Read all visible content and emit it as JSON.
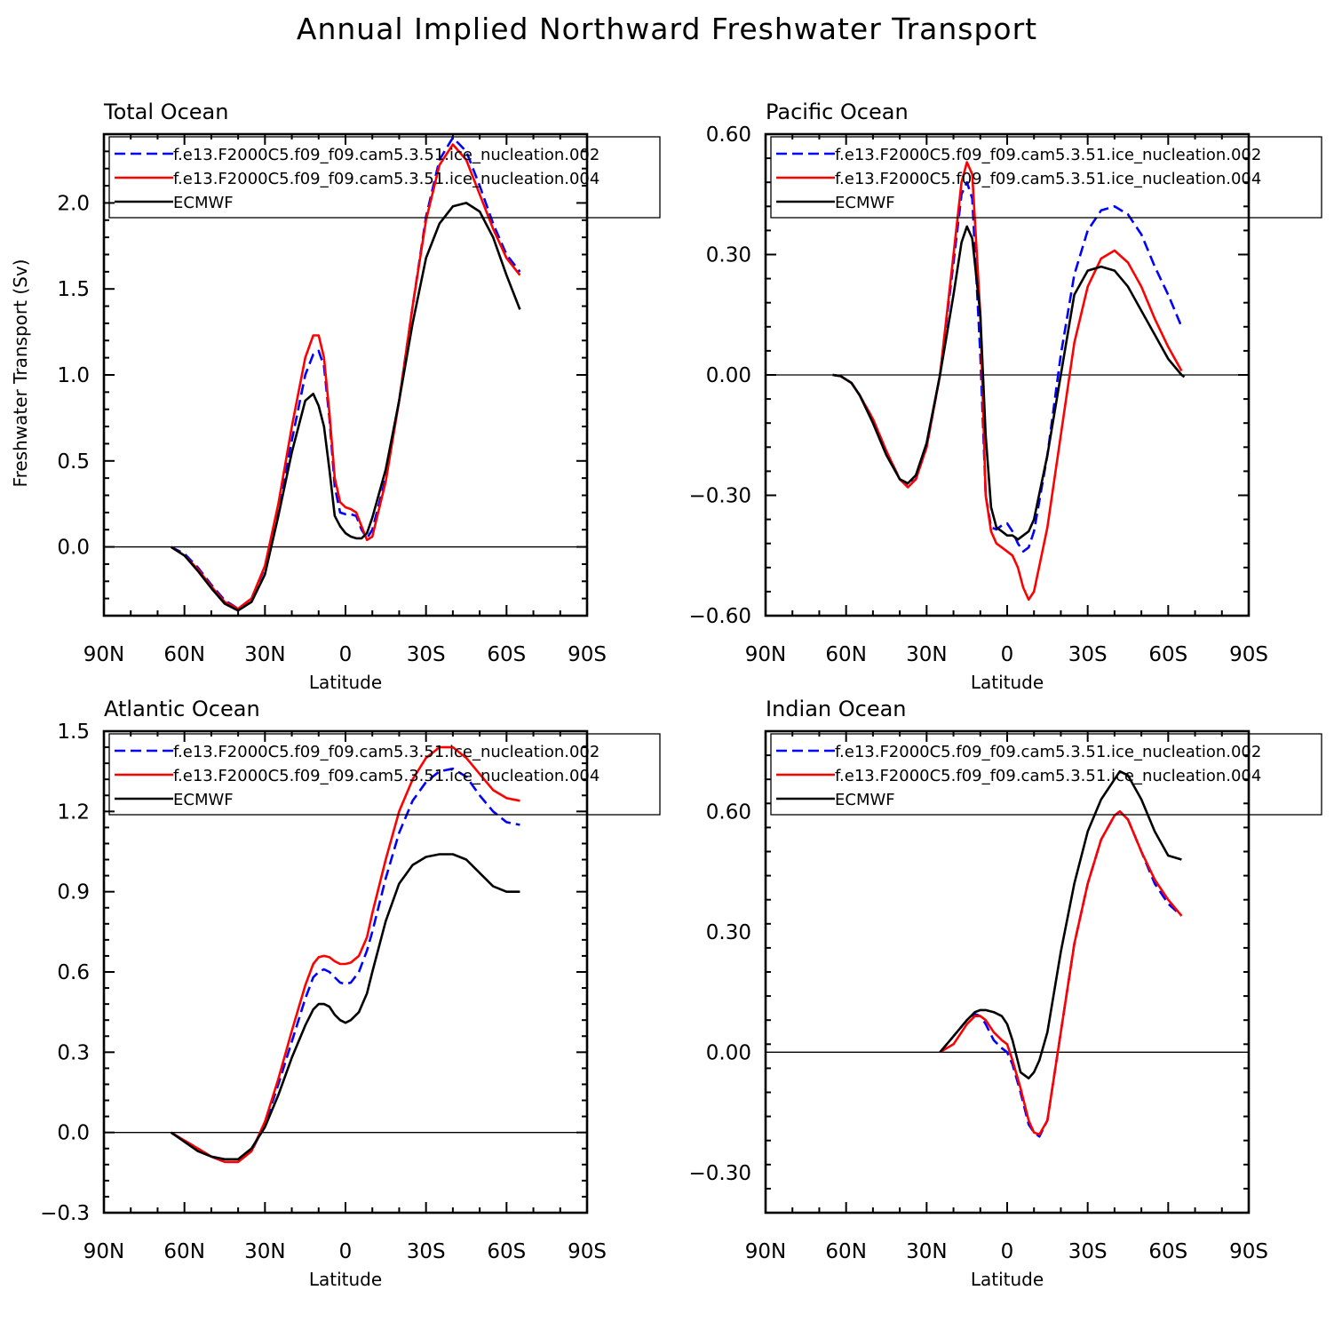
{
  "figure": {
    "title": "Annual Implied Northward Freshwater Transport",
    "ylabel": "Freshwater Transport (Sv)"
  },
  "legend": [
    {
      "name": "f.e13.F2000C5.f09_f09.cam5.3.51.ice_nucleation.002",
      "color": "#0000ff",
      "dash": true
    },
    {
      "name": "f.e13.F2000C5.f09_f09.cam5.3.51.ice_nucleation.004",
      "color": "#ff0000",
      "dash": false
    },
    {
      "name": "ECMWF",
      "color": "#000000",
      "dash": false
    }
  ],
  "chart_data": [
    {
      "type": "line",
      "title": "Total Ocean",
      "xlabel": "Latitude",
      "ylabel": "Freshwater Transport (Sv)",
      "xlim": [
        90,
        -90
      ],
      "ylim": [
        -0.4,
        2.4
      ],
      "xticks": [
        90,
        60,
        30,
        0,
        -30,
        -60,
        -90
      ],
      "xticklabels": [
        "90N",
        "60N",
        "30N",
        "0",
        "30S",
        "60S",
        "90S"
      ],
      "yticks": [
        0.0,
        0.5,
        1.0,
        1.5,
        2.0
      ],
      "yticklabels": [
        "0.0",
        "0.5",
        "1.0",
        "1.5",
        "2.0"
      ],
      "legend_position": "top",
      "series": [
        {
          "name": "f.e13.F2000C5.f09_f09.cam5.3.51.ice_nucleation.002",
          "x": [
            65,
            60,
            55,
            50,
            45,
            40,
            35,
            30,
            25,
            20,
            15,
            12,
            10,
            8,
            6,
            4,
            2,
            0,
            -2,
            -4,
            -6,
            -8,
            -10,
            -15,
            -20,
            -25,
            -30,
            -35,
            -40,
            -45,
            -50,
            -55,
            -60,
            -65
          ],
          "y": [
            0.0,
            -0.04,
            -0.12,
            -0.22,
            -0.31,
            -0.36,
            -0.3,
            -0.12,
            0.22,
            0.62,
            1.0,
            1.12,
            1.14,
            1.05,
            0.75,
            0.35,
            0.2,
            0.19,
            0.19,
            0.18,
            0.1,
            0.05,
            0.1,
            0.4,
            0.85,
            1.4,
            1.92,
            2.25,
            2.38,
            2.3,
            2.1,
            1.88,
            1.7,
            1.6
          ]
        },
        {
          "name": "f.e13.F2000C5.f09_f09.cam5.3.51.ice_nucleation.004",
          "x": [
            65,
            60,
            55,
            50,
            45,
            40,
            35,
            30,
            25,
            20,
            15,
            12,
            10,
            8,
            6,
            4,
            2,
            0,
            -2,
            -4,
            -6,
            -8,
            -10,
            -15,
            -20,
            -25,
            -30,
            -35,
            -40,
            -45,
            -50,
            -55,
            -60,
            -65
          ],
          "y": [
            0.0,
            -0.05,
            -0.13,
            -0.23,
            -0.32,
            -0.36,
            -0.3,
            -0.11,
            0.25,
            0.7,
            1.1,
            1.23,
            1.23,
            1.1,
            0.78,
            0.4,
            0.26,
            0.23,
            0.22,
            0.2,
            0.12,
            0.04,
            0.06,
            0.38,
            0.85,
            1.4,
            1.9,
            2.22,
            2.34,
            2.25,
            2.05,
            1.85,
            1.68,
            1.58
          ]
        },
        {
          "name": "ECMWF",
          "x": [
            65,
            60,
            55,
            50,
            45,
            40,
            35,
            30,
            25,
            20,
            15,
            12,
            10,
            8,
            6,
            4,
            2,
            0,
            -2,
            -4,
            -6,
            -8,
            -10,
            -15,
            -20,
            -25,
            -30,
            -35,
            -40,
            -45,
            -50,
            -55,
            -60,
            -65
          ],
          "y": [
            0.0,
            -0.05,
            -0.14,
            -0.24,
            -0.33,
            -0.37,
            -0.32,
            -0.16,
            0.18,
            0.55,
            0.85,
            0.89,
            0.82,
            0.7,
            0.45,
            0.18,
            0.12,
            0.08,
            0.06,
            0.05,
            0.05,
            0.08,
            0.17,
            0.45,
            0.85,
            1.3,
            1.68,
            1.88,
            1.98,
            2.0,
            1.95,
            1.8,
            1.58,
            1.38
          ]
        }
      ]
    },
    {
      "type": "line",
      "title": "Pacific Ocean",
      "xlabel": "Latitude",
      "xlim": [
        90,
        -90
      ],
      "ylim": [
        -0.6,
        0.6
      ],
      "xticks": [
        90,
        60,
        30,
        0,
        -30,
        -60,
        -90
      ],
      "xticklabels": [
        "90N",
        "60N",
        "30N",
        "0",
        "30S",
        "60S",
        "90S"
      ],
      "yticks": [
        -0.6,
        -0.3,
        0.0,
        0.3,
        0.6
      ],
      "yticklabels": [
        "−0.60",
        "−0.30",
        "0.00",
        "0.30",
        "0.60"
      ],
      "legend_position": "top",
      "series": [
        {
          "name": "f.e13.F2000C5.f09_f09.cam5.3.51.ice_nucleation.002",
          "x": [
            65,
            62,
            58,
            55,
            50,
            45,
            40,
            37,
            34,
            30,
            25,
            20,
            17,
            15,
            13,
            10,
            8,
            6,
            4,
            2,
            0,
            -2,
            -4,
            -6,
            -8,
            -10,
            -15,
            -20,
            -25,
            -30,
            -35,
            -40,
            -45,
            -50,
            -55,
            -60,
            -65
          ],
          "y": [
            0.0,
            -0.003,
            -0.02,
            -0.05,
            -0.11,
            -0.19,
            -0.26,
            -0.275,
            -0.26,
            -0.18,
            0.0,
            0.28,
            0.45,
            0.48,
            0.44,
            0.05,
            -0.3,
            -0.38,
            -0.385,
            -0.375,
            -0.37,
            -0.39,
            -0.42,
            -0.44,
            -0.43,
            -0.39,
            -0.2,
            0.05,
            0.25,
            0.36,
            0.41,
            0.42,
            0.4,
            0.35,
            0.27,
            0.2,
            0.12
          ]
        },
        {
          "name": "f.e13.F2000C5.f09_f09.cam5.3.51.ice_nucleation.004",
          "x": [
            65,
            62,
            58,
            55,
            50,
            45,
            40,
            37,
            34,
            30,
            25,
            20,
            17,
            15,
            13,
            10,
            8,
            6,
            4,
            2,
            0,
            -2,
            -4,
            -6,
            -8,
            -10,
            -15,
            -20,
            -25,
            -30,
            -35,
            -40,
            -45,
            -50,
            -55,
            -60,
            -65
          ],
          "y": [
            0.0,
            -0.003,
            -0.02,
            -0.05,
            -0.11,
            -0.19,
            -0.26,
            -0.28,
            -0.26,
            -0.18,
            0.0,
            0.3,
            0.48,
            0.53,
            0.5,
            0.15,
            -0.3,
            -0.39,
            -0.42,
            -0.43,
            -0.44,
            -0.45,
            -0.48,
            -0.53,
            -0.56,
            -0.54,
            -0.38,
            -0.15,
            0.08,
            0.22,
            0.29,
            0.31,
            0.28,
            0.22,
            0.14,
            0.07,
            0.01
          ]
        },
        {
          "name": "ECMWF",
          "x": [
            65,
            62,
            58,
            55,
            50,
            45,
            40,
            37,
            34,
            30,
            25,
            20,
            17,
            15,
            13,
            10,
            8,
            6,
            4,
            2,
            0,
            -2,
            -4,
            -6,
            -8,
            -10,
            -15,
            -20,
            -25,
            -30,
            -35,
            -40,
            -45,
            -50,
            -55,
            -60,
            -65,
            -66
          ],
          "y": [
            0.0,
            -0.003,
            -0.02,
            -0.05,
            -0.12,
            -0.2,
            -0.26,
            -0.27,
            -0.25,
            -0.17,
            0.0,
            0.2,
            0.33,
            0.37,
            0.34,
            0.15,
            -0.15,
            -0.33,
            -0.38,
            -0.39,
            -0.4,
            -0.4,
            -0.41,
            -0.4,
            -0.39,
            -0.36,
            -0.2,
            0.0,
            0.2,
            0.26,
            0.27,
            0.26,
            0.22,
            0.16,
            0.1,
            0.04,
            0.0,
            -0.005
          ]
        }
      ]
    },
    {
      "type": "line",
      "title": "Atlantic Ocean",
      "xlabel": "Latitude",
      "xlim": [
        90,
        -90
      ],
      "ylim": [
        -0.3,
        1.5
      ],
      "xticks": [
        90,
        60,
        30,
        0,
        -30,
        -60,
        -90
      ],
      "xticklabels": [
        "90N",
        "60N",
        "30N",
        "0",
        "30S",
        "60S",
        "90S"
      ],
      "yticks": [
        -0.3,
        0.0,
        0.3,
        0.6,
        0.9,
        1.2,
        1.5
      ],
      "yticklabels": [
        "−0.3",
        "0.0",
        "0.3",
        "0.6",
        "0.9",
        "1.2",
        "1.5"
      ],
      "legend_position": "top",
      "series": [
        {
          "name": "f.e13.F2000C5.f09_f09.cam5.3.51.ice_nucleation.002",
          "x": [
            65,
            60,
            55,
            50,
            45,
            40,
            35,
            30,
            25,
            20,
            15,
            12,
            10,
            8,
            6,
            4,
            2,
            0,
            -2,
            -5,
            -8,
            -10,
            -15,
            -20,
            -25,
            -30,
            -35,
            -40,
            -45,
            -50,
            -55,
            -60,
            -65
          ],
          "y": [
            0.0,
            -0.03,
            -0.06,
            -0.09,
            -0.11,
            -0.11,
            -0.07,
            0.03,
            0.18,
            0.34,
            0.5,
            0.58,
            0.6,
            0.61,
            0.6,
            0.58,
            0.56,
            0.555,
            0.56,
            0.6,
            0.68,
            0.75,
            0.95,
            1.12,
            1.24,
            1.31,
            1.35,
            1.36,
            1.33,
            1.26,
            1.2,
            1.16,
            1.15
          ]
        },
        {
          "name": "f.e13.F2000C5.f09_f09.cam5.3.51.ice_nucleation.004",
          "x": [
            65,
            60,
            55,
            50,
            45,
            40,
            35,
            30,
            25,
            20,
            15,
            12,
            10,
            8,
            6,
            4,
            2,
            0,
            -2,
            -5,
            -8,
            -10,
            -15,
            -20,
            -25,
            -30,
            -35,
            -40,
            -45,
            -50,
            -55,
            -60,
            -65
          ],
          "y": [
            0.0,
            -0.03,
            -0.06,
            -0.09,
            -0.11,
            -0.11,
            -0.07,
            0.04,
            0.2,
            0.38,
            0.55,
            0.63,
            0.655,
            0.66,
            0.655,
            0.64,
            0.63,
            0.63,
            0.635,
            0.66,
            0.73,
            0.82,
            1.02,
            1.2,
            1.32,
            1.4,
            1.44,
            1.44,
            1.4,
            1.34,
            1.28,
            1.25,
            1.24
          ]
        },
        {
          "name": "ECMWF",
          "x": [
            65,
            60,
            55,
            50,
            45,
            40,
            35,
            30,
            25,
            20,
            15,
            12,
            10,
            8,
            6,
            4,
            2,
            0,
            -2,
            -5,
            -8,
            -10,
            -15,
            -20,
            -25,
            -30,
            -35,
            -40,
            -45,
            -50,
            -55,
            -60,
            -65
          ],
          "y": [
            0.0,
            -0.035,
            -0.07,
            -0.09,
            -0.1,
            -0.1,
            -0.06,
            0.02,
            0.14,
            0.28,
            0.4,
            0.46,
            0.48,
            0.48,
            0.47,
            0.44,
            0.42,
            0.41,
            0.42,
            0.45,
            0.52,
            0.6,
            0.79,
            0.93,
            1.0,
            1.03,
            1.04,
            1.04,
            1.02,
            0.97,
            0.92,
            0.9,
            0.9
          ]
        }
      ]
    },
    {
      "type": "line",
      "title": "Indian Ocean",
      "xlabel": "Latitude",
      "xlim": [
        90,
        -90
      ],
      "ylim": [
        -0.4,
        0.8
      ],
      "xticks": [
        90,
        60,
        30,
        0,
        -30,
        -60,
        -90
      ],
      "xticklabels": [
        "90N",
        "60N",
        "30N",
        "0",
        "30S",
        "60S",
        "90S"
      ],
      "yticks": [
        -0.3,
        0.0,
        0.3,
        0.6
      ],
      "yticklabels": [
        "−0.30",
        "0.00",
        "0.30",
        "0.60"
      ],
      "legend_position": "top",
      "series": [
        {
          "name": "f.e13.F2000C5.f09_f09.cam5.3.51.ice_nucleation.002",
          "x": [
            25,
            20,
            15,
            12,
            10,
            8,
            5,
            2,
            0,
            -2,
            -5,
            -8,
            -10,
            -12,
            -15,
            -20,
            -25,
            -30,
            -35,
            -40,
            -42,
            -45,
            -50,
            -55,
            -60,
            -65
          ],
          "y": [
            0.0,
            0.04,
            0.08,
            0.095,
            0.09,
            0.07,
            0.03,
            0.01,
            0.0,
            -0.03,
            -0.1,
            -0.18,
            -0.2,
            -0.21,
            -0.17,
            0.05,
            0.27,
            0.42,
            0.53,
            0.59,
            0.6,
            0.58,
            0.5,
            0.42,
            0.37,
            0.34
          ]
        },
        {
          "name": "f.e13.F2000C5.f09_f09.cam5.3.51.ice_nucleation.004",
          "x": [
            25,
            20,
            15,
            12,
            10,
            8,
            5,
            2,
            0,
            -2,
            -5,
            -8,
            -10,
            -12,
            -15,
            -20,
            -25,
            -30,
            -35,
            -40,
            -42,
            -45,
            -50,
            -55,
            -60,
            -65
          ],
          "y": [
            0.0,
            0.02,
            0.07,
            0.09,
            0.09,
            0.08,
            0.05,
            0.03,
            0.02,
            -0.02,
            -0.09,
            -0.17,
            -0.2,
            -0.205,
            -0.17,
            0.05,
            0.27,
            0.42,
            0.53,
            0.59,
            0.6,
            0.58,
            0.5,
            0.43,
            0.38,
            0.34
          ]
        },
        {
          "name": "ECMWF",
          "x": [
            25,
            20,
            15,
            12,
            10,
            8,
            5,
            2,
            0,
            -2,
            -5,
            -8,
            -10,
            -12,
            -15,
            -20,
            -25,
            -30,
            -35,
            -40,
            -42,
            -45,
            -50,
            -55,
            -60,
            -65
          ],
          "y": [
            0.0,
            0.04,
            0.08,
            0.1,
            0.105,
            0.105,
            0.1,
            0.09,
            0.07,
            0.03,
            -0.05,
            -0.065,
            -0.05,
            -0.02,
            0.05,
            0.25,
            0.42,
            0.55,
            0.63,
            0.68,
            0.7,
            0.69,
            0.63,
            0.55,
            0.49,
            0.48
          ]
        }
      ]
    }
  ]
}
